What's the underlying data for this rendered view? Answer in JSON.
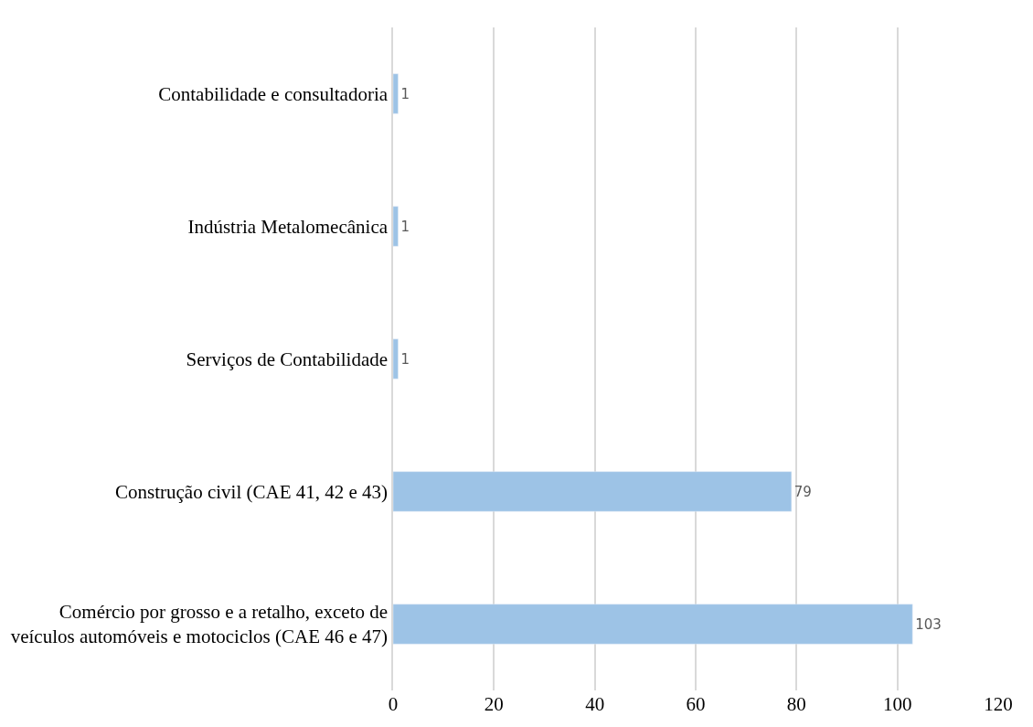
{
  "chart_data": {
    "type": "bar",
    "orientation": "horizontal",
    "categories": [
      "Contabilidade e consultadoria",
      "Indústria Metalomecânica",
      "Serviços de Contabilidade",
      "Construção civil (CAE 41, 42 e 43)",
      "Comércio por grosso e a retalho, exceto de\nveículos automóveis e motociclos (CAE 46 e 47)"
    ],
    "values": [
      1,
      1,
      1,
      79,
      103
    ],
    "color": "#9dc3e6",
    "xlim": [
      0,
      120
    ],
    "xticks": [
      0,
      20,
      40,
      60,
      80,
      100,
      120
    ],
    "grid": "x",
    "data_labels": true
  }
}
